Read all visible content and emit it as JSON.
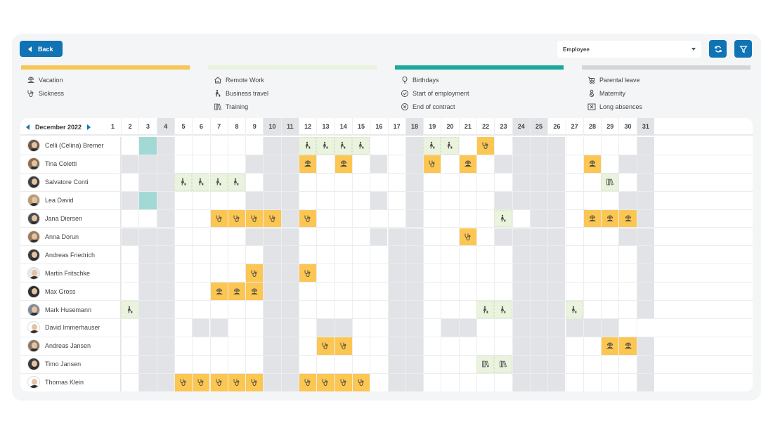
{
  "toolbar": {
    "back_label": "Back",
    "view_select": "Employee",
    "refresh_button": "refresh-icon",
    "filter_button": "filter-icon",
    "accent_color": "#0f73b4"
  },
  "legend": [
    {
      "color": "#f6c755",
      "items": [
        {
          "icon": "vacation",
          "label": "Vacation"
        },
        {
          "icon": "sickness",
          "label": "Sickness"
        }
      ]
    },
    {
      "color": "#e9f2dc",
      "items": [
        {
          "icon": "remote",
          "label": "Remote Work"
        },
        {
          "icon": "travel",
          "label": "Business travel"
        },
        {
          "icon": "training",
          "label": "Training"
        }
      ]
    },
    {
      "color": "#1aa99b",
      "items": [
        {
          "icon": "birthday",
          "label": "Birthdays"
        },
        {
          "icon": "start",
          "label": "Start of employment"
        },
        {
          "icon": "end",
          "label": "End of contract"
        }
      ]
    },
    {
      "color": "#d4d5d7",
      "items": [
        {
          "icon": "parental",
          "label": "Parental leave"
        },
        {
          "icon": "maternity",
          "label": "Maternity"
        },
        {
          "icon": "long",
          "label": "Long absences"
        }
      ]
    }
  ],
  "calendar": {
    "month_label": "December 2022",
    "first_day": "1",
    "days": [
      "2",
      "3",
      "4",
      "5",
      "6",
      "7",
      "8",
      "9",
      "10",
      "11",
      "12",
      "13",
      "14",
      "15",
      "16",
      "17",
      "18",
      "19",
      "20",
      "21",
      "22",
      "23",
      "24",
      "25",
      "26",
      "27",
      "28",
      "29",
      "30",
      "31"
    ],
    "header_gray": "ggwwwwwggwwwwwwgwwwwwggwwwwww g",
    "header_gray_days": [
      "4",
      "10",
      "11",
      "18",
      "24",
      "25",
      "31"
    ],
    "cell_codes": {
      "w": "empty",
      "g": "non-working",
      "t": "birthday",
      "T": "business-travel",
      "S": "sickness",
      "V": "vacation",
      "R": "training"
    },
    "employees": [
      {
        "name": "Celli (Celina) Bremer",
        "cells": "wtgwwwwwggTTTTwwgTTwSwgggwwwwg"
      },
      {
        "name": "Tina Coletti",
        "cells": "gggwwwwgggVwVwgwgSwVwggggwVwgg"
      },
      {
        "name": "Salvatore Conti",
        "cells": "wggTTTTwggwwwwwwgwwwwwgggwwRwg"
      },
      {
        "name": "Lea David",
        "cells": "gtgwwwwgggwwwwgwgwwwwggggwwwgg"
      },
      {
        "name": "Jana Diersen",
        "cells": "wwgwwSSSSgSwwwwwgwwwwTwggwVVVg"
      },
      {
        "name": "Anna Dorun",
        "cells": "gggwwwwgggwwwwgggwwSwggggwwwgg"
      },
      {
        "name": "Andreas Friedrich",
        "cells": "wggwwwwwggwwwwwggwwwwwgggwwwwg"
      },
      {
        "name": "Martin Fritschke",
        "cells": "wggwwwwSggSwwwwggwwwwwgggwwwwg"
      },
      {
        "name": "Max Gross",
        "cells": "wggwwVVVggwwwwwggwwwwwgggwwwwg"
      },
      {
        "name": "Mark Husemann",
        "cells": "TggwwwwwggwwwwwggwwwTTgggTwwwg"
      },
      {
        "name": "David Immerhauser",
        "cells": "wggwggwwggwggwwggwggwwggggggwwg"
      },
      {
        "name": "Andreas Jansen",
        "cells": "wggwwwwwggwSSwwggwwwwwgggwwVVg"
      },
      {
        "name": "Timo Jansen",
        "cells": "wggwwwwwggwwwwwggwwwRRgggwwwwg"
      },
      {
        "name": "Thomas Klein",
        "cells": "wggSSSSSggSSSSwggwwwwwgggwwwwg"
      }
    ]
  }
}
